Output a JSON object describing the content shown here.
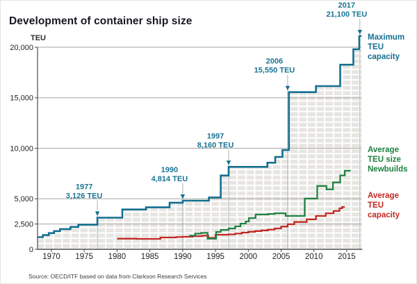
{
  "chart_data": {
    "type": "line",
    "subtype": "step",
    "title": "Development of container ship size",
    "ylabel": "TEU",
    "xlabel": "",
    "source": "Source: OECD/ITF based on data from Clarkson Research Services",
    "grid": "horizontal",
    "legend_position": "right",
    "xlim": [
      1967.9,
      2017.3
    ],
    "ylim": [
      0,
      21500
    ],
    "x_ticks": [
      1970,
      1975,
      1980,
      1985,
      1990,
      1995,
      2000,
      2005,
      2010,
      2015
    ],
    "y_ticks": [
      {
        "value": 0,
        "label": "0",
        "gridline": false
      },
      {
        "value": 2500,
        "label": "2,500",
        "gridline": true
      },
      {
        "value": 5000,
        "label": "5,000",
        "gridline": true
      },
      {
        "value": 10000,
        "label": "10,000",
        "gridline": true
      },
      {
        "value": 15000,
        "label": "15,000",
        "gridline": true
      },
      {
        "value": 20000,
        "label": "20,000",
        "gridline": true
      }
    ],
    "series": [
      {
        "name": "Maximum TEU capacity",
        "legend_label": "Maximum\nTEU capacity",
        "color": "#136f90",
        "line_width": 2.6,
        "fill_under": "container-brick-pattern",
        "end_year": 2017.25,
        "points": [
          [
            1967.9,
            1200
          ],
          [
            1968.7,
            1400
          ],
          [
            1969.6,
            1600
          ],
          [
            1970.4,
            1800
          ],
          [
            1971.3,
            2000
          ],
          [
            1972.9,
            2215
          ],
          [
            1974.1,
            2430
          ],
          [
            1977,
            3126
          ],
          [
            1980.8,
            3940
          ],
          [
            1984.4,
            4150
          ],
          [
            1988,
            4610
          ],
          [
            1990,
            4814
          ],
          [
            1994,
            5130
          ],
          [
            1995.8,
            7300
          ],
          [
            1997,
            8160
          ],
          [
            2002.9,
            8570
          ],
          [
            2004.1,
            9140
          ],
          [
            2005.2,
            9830
          ],
          [
            2006.2,
            15550
          ],
          [
            2010.3,
            16150
          ],
          [
            2014,
            18270
          ],
          [
            2016,
            19800
          ],
          [
            2016.9,
            21100
          ]
        ]
      },
      {
        "name": "Average TEU size Newbuilds",
        "legend_label": "Average\nTEU size\nNewbuilds",
        "color": "#1f8040",
        "line_width": 2.3,
        "fill_under": null,
        "end_year": 2015.6,
        "points": [
          [
            1991,
            1350
          ],
          [
            1991.9,
            1550
          ],
          [
            1992.8,
            1620
          ],
          [
            1993.8,
            1050
          ],
          [
            1995.1,
            1720
          ],
          [
            1995.8,
            1920
          ],
          [
            1997,
            2060
          ],
          [
            1998,
            2270
          ],
          [
            1998.8,
            2540
          ],
          [
            1999.6,
            2750
          ],
          [
            2000.1,
            3090
          ],
          [
            2001.1,
            3440
          ],
          [
            2003,
            3500
          ],
          [
            2004,
            3570
          ],
          [
            2005.7,
            3300
          ],
          [
            2008.6,
            5020
          ],
          [
            2010.5,
            6270
          ],
          [
            2011.9,
            5930
          ],
          [
            2012.9,
            6620
          ],
          [
            2014,
            7310
          ],
          [
            2014.7,
            7770
          ]
        ]
      },
      {
        "name": "Average TEU capacity",
        "legend_label": "Average\nTEU capacity",
        "color": "#c22722",
        "line_width": 2.3,
        "fill_under": null,
        "end_year": 2014.7,
        "points": [
          [
            1980,
            1050
          ],
          [
            1983,
            1030
          ],
          [
            1986.6,
            1170
          ],
          [
            1989,
            1210
          ],
          [
            1990,
            1240
          ],
          [
            1991.5,
            1300
          ],
          [
            1993,
            1350
          ],
          [
            1993.9,
            1120
          ],
          [
            1995,
            1440
          ],
          [
            1997,
            1480
          ],
          [
            1998,
            1550
          ],
          [
            1999,
            1650
          ],
          [
            2000,
            1730
          ],
          [
            2001,
            1800
          ],
          [
            2002,
            1870
          ],
          [
            2003,
            1950
          ],
          [
            2004,
            2060
          ],
          [
            2005,
            2250
          ],
          [
            2006,
            2480
          ],
          [
            2007,
            2700
          ],
          [
            2008.9,
            2960
          ],
          [
            2010.3,
            3300
          ],
          [
            2011.8,
            3570
          ],
          [
            2013,
            3790
          ],
          [
            2013.9,
            4060
          ],
          [
            2014.3,
            4190
          ]
        ]
      }
    ],
    "annotations": [
      {
        "year_label": "1977",
        "teu_label": "3,126 TEU",
        "year": 1977,
        "teu": 3126
      },
      {
        "year_label": "1990",
        "teu_label": "4,814 TEU",
        "year": 1990,
        "teu": 4814
      },
      {
        "year_label": "1997",
        "teu_label": "8,160 TEU",
        "year": 1997,
        "teu": 8160
      },
      {
        "year_label": "2006",
        "teu_label": "15,550 TEU",
        "year": 2006,
        "teu": 15550
      },
      {
        "year_label": "2017",
        "teu_label": "21,100 TEU",
        "year": 2017,
        "teu": 21100
      }
    ],
    "colors": {
      "teal": "#136f90",
      "green": "#1f8040",
      "red": "#c22722",
      "gridline": "#a8a6a2",
      "callout_line": "#9badb4",
      "brick_fill": "#e7e5e1",
      "axis": "#4c4c4c"
    }
  }
}
